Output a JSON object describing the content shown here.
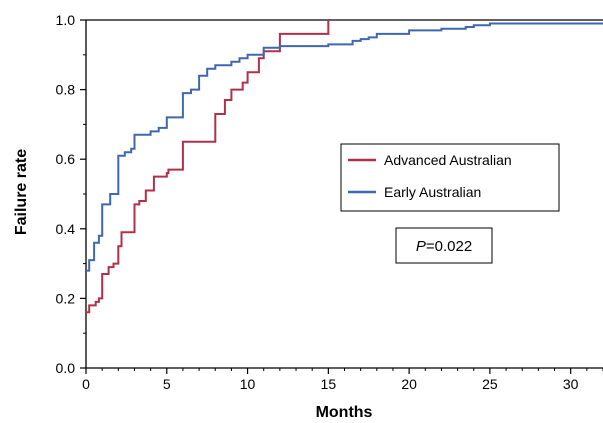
{
  "chart_data": {
    "type": "line",
    "step": true,
    "xlabel": "Months",
    "ylabel": "Failure rate",
    "xlim": [
      0,
      32
    ],
    "ylim": [
      0,
      1.0
    ],
    "xticks": [
      0,
      5,
      10,
      15,
      20,
      25,
      30
    ],
    "yticks": [
      0.0,
      0.2,
      0.4,
      0.6,
      0.8,
      1.0
    ],
    "xtick_labels": [
      "0",
      "5",
      "10",
      "15",
      "20",
      "25",
      "30"
    ],
    "ytick_labels": [
      "0.0",
      "0.2",
      "0.4",
      "0.6",
      "0.8",
      "1.0"
    ],
    "grid": false,
    "legend_position": "center-right",
    "series": [
      {
        "name": "Advanced Australian",
        "color": "#b0304a",
        "points": [
          [
            0,
            0.16
          ],
          [
            0.2,
            0.18
          ],
          [
            0.6,
            0.19
          ],
          [
            0.8,
            0.2
          ],
          [
            1.0,
            0.27
          ],
          [
            1.4,
            0.29
          ],
          [
            1.7,
            0.3
          ],
          [
            2.0,
            0.35
          ],
          [
            2.2,
            0.39
          ],
          [
            3.0,
            0.47
          ],
          [
            3.3,
            0.48
          ],
          [
            3.7,
            0.51
          ],
          [
            4.2,
            0.55
          ],
          [
            5.0,
            0.56
          ],
          [
            5.1,
            0.57
          ],
          [
            6.0,
            0.65
          ],
          [
            8.0,
            0.73
          ],
          [
            8.6,
            0.77
          ],
          [
            9.0,
            0.8
          ],
          [
            9.7,
            0.82
          ],
          [
            10.0,
            0.85
          ],
          [
            10.7,
            0.89
          ],
          [
            11.0,
            0.91
          ],
          [
            12.0,
            0.96
          ],
          [
            15.0,
            1.0
          ]
        ],
        "end_x": 15.0
      },
      {
        "name": "Early Australian",
        "color": "#3f67b0",
        "points": [
          [
            0,
            0.28
          ],
          [
            0.2,
            0.31
          ],
          [
            0.5,
            0.36
          ],
          [
            0.8,
            0.38
          ],
          [
            1.0,
            0.47
          ],
          [
            1.5,
            0.5
          ],
          [
            2.0,
            0.61
          ],
          [
            2.4,
            0.62
          ],
          [
            2.8,
            0.63
          ],
          [
            3.0,
            0.67
          ],
          [
            4.0,
            0.68
          ],
          [
            4.5,
            0.69
          ],
          [
            5.0,
            0.72
          ],
          [
            6.0,
            0.79
          ],
          [
            6.5,
            0.8
          ],
          [
            7.0,
            0.84
          ],
          [
            7.5,
            0.86
          ],
          [
            8.0,
            0.87
          ],
          [
            9.0,
            0.88
          ],
          [
            9.5,
            0.89
          ],
          [
            10.0,
            0.9
          ],
          [
            11.0,
            0.92
          ],
          [
            12.0,
            0.925
          ],
          [
            15.0,
            0.93
          ],
          [
            16.0,
            0.93
          ],
          [
            16.5,
            0.94
          ],
          [
            17.0,
            0.945
          ],
          [
            17.5,
            0.95
          ],
          [
            18.0,
            0.96
          ],
          [
            19.0,
            0.96
          ],
          [
            20.0,
            0.97
          ],
          [
            22.0,
            0.975
          ],
          [
            23.0,
            0.975
          ],
          [
            23.5,
            0.98
          ],
          [
            24.0,
            0.985
          ],
          [
            25.0,
            0.99
          ],
          [
            32.0,
            0.99
          ]
        ],
        "end_x": 32.0
      }
    ],
    "annotations": [
      {
        "italic": "P",
        "text": "=0.022"
      }
    ]
  }
}
